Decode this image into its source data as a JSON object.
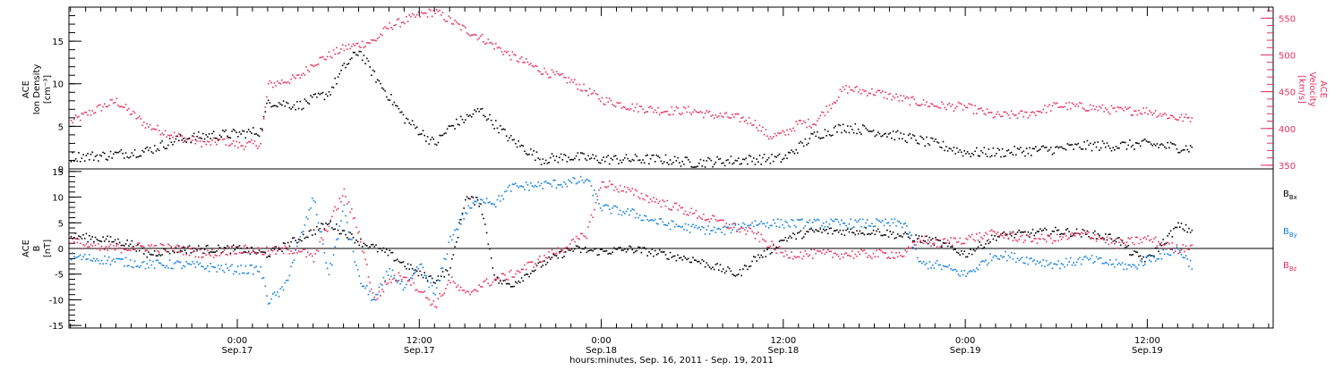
{
  "colors": {
    "black": "#000000",
    "pink": "#e8305d",
    "blue": "#1080e0"
  },
  "time_axis": {
    "xlabel": "hours:minutes, Sep. 16, 2011 - Sep. 19, 2011",
    "ticks": [
      {
        "hour": 24,
        "time": "0:00",
        "date": "Sep.17"
      },
      {
        "hour": 36,
        "time": "12:00",
        "date": "Sep.17"
      },
      {
        "hour": 48,
        "time": "0:00",
        "date": "Sep.18"
      },
      {
        "hour": 60,
        "time": "12:00",
        "date": "Sep.18"
      },
      {
        "hour": 72,
        "time": "0:00",
        "date": "Sep.19"
      },
      {
        "hour": 84,
        "time": "12:00",
        "date": "Sep.19"
      }
    ]
  },
  "chart_data": [
    {
      "type": "scatter",
      "panel": "top",
      "x_units": "hours since Sep. 16, 2011 0:00",
      "xlim": [
        12.9,
        92.3
      ],
      "left_axis": {
        "label_lines": [
          "ACE",
          "Ion Density",
          "[cm⁻³]"
        ],
        "ylim": [
          0,
          19
        ],
        "ticks": [
          0,
          5,
          10,
          15
        ]
      },
      "right_axis": {
        "label_lines": [
          "ACE",
          "Velocity",
          "[km/s]"
        ],
        "ylim": [
          345,
          565
        ],
        "ticks": [
          350,
          400,
          450,
          500,
          550
        ]
      },
      "series": [
        {
          "axis": "left",
          "color": "#000000",
          "points": [
            [
              13,
              1.5
            ],
            [
              15,
              1.6
            ],
            [
              18,
              2.2
            ],
            [
              20,
              3.5
            ],
            [
              22,
              4
            ],
            [
              24,
              4.2
            ],
            [
              25.5,
              4.5
            ],
            [
              26,
              8
            ],
            [
              28,
              7.5
            ],
            [
              30,
              9
            ],
            [
              31,
              12
            ],
            [
              32,
              14
            ],
            [
              33,
              11
            ],
            [
              35,
              6
            ],
            [
              37,
              3
            ],
            [
              38,
              5
            ],
            [
              40,
              7
            ],
            [
              42,
              3.5
            ],
            [
              44,
              1.2
            ],
            [
              46,
              1.5
            ],
            [
              48,
              1.2
            ],
            [
              50,
              1.2
            ],
            [
              52,
              1.2
            ],
            [
              54,
              0.8
            ],
            [
              56,
              1.0
            ],
            [
              58,
              1.2
            ],
            [
              60,
              1.3
            ],
            [
              62,
              4
            ],
            [
              64,
              5
            ],
            [
              66,
              4.5
            ],
            [
              68,
              3.8
            ],
            [
              70,
              3.0
            ],
            [
              72,
              2.0
            ],
            [
              74,
              2.0
            ],
            [
              76,
              2.2
            ],
            [
              78,
              2.4
            ],
            [
              80,
              2.8
            ],
            [
              82,
              2.8
            ],
            [
              84,
              3.0
            ],
            [
              86,
              2.6
            ],
            [
              87,
              2.5
            ]
          ]
        },
        {
          "axis": "right",
          "color": "#e8305d",
          "points": [
            [
              13,
              410
            ],
            [
              15,
              430
            ],
            [
              16,
              438
            ],
            [
              18,
              405
            ],
            [
              20,
              390
            ],
            [
              22,
              380
            ],
            [
              23,
              385
            ],
            [
              24,
              378
            ],
            [
              25.5,
              380
            ],
            [
              26,
              460
            ],
            [
              28,
              470
            ],
            [
              29,
              490
            ],
            [
              31,
              510
            ],
            [
              33,
              520
            ],
            [
              34,
              540
            ],
            [
              36,
              555
            ],
            [
              37,
              560
            ],
            [
              39,
              535
            ],
            [
              40,
              525
            ],
            [
              42,
              500
            ],
            [
              44,
              480
            ],
            [
              46,
              465
            ],
            [
              48,
              440
            ],
            [
              50,
              430
            ],
            [
              52,
              425
            ],
            [
              54,
              425
            ],
            [
              55,
              420
            ],
            [
              57,
              415
            ],
            [
              58,
              410
            ],
            [
              59,
              390
            ],
            [
              60,
              393
            ],
            [
              61,
              408
            ],
            [
              62,
              408
            ],
            [
              64,
              455
            ],
            [
              66,
              450
            ],
            [
              68,
              440
            ],
            [
              70,
              432
            ],
            [
              72,
              430
            ],
            [
              74,
              418
            ],
            [
              76,
              420
            ],
            [
              78,
              432
            ],
            [
              80,
              430
            ],
            [
              82,
              425
            ],
            [
              84,
              425
            ],
            [
              86,
              415
            ],
            [
              87,
              415
            ]
          ]
        }
      ]
    },
    {
      "type": "scatter",
      "panel": "bottom",
      "x_units": "hours since Sep. 16, 2011 0:00",
      "xlim": [
        12.9,
        92.3
      ],
      "left_axis": {
        "label_lines": [
          "ACE",
          "B",
          "[nT]"
        ],
        "ylim": [
          -15.5,
          15.5
        ],
        "ticks": [
          -15,
          -10,
          -5,
          0,
          5,
          10,
          15
        ]
      },
      "zero_line": true,
      "legend": [
        "Bx",
        "By",
        "Bz"
      ],
      "legend_placement": "right",
      "series": [
        {
          "name": "Bx",
          "color": "#000000",
          "points": [
            [
              13,
              2.5
            ],
            [
              15,
              2
            ],
            [
              17,
              1
            ],
            [
              18,
              -1
            ],
            [
              20,
              0
            ],
            [
              22,
              0
            ],
            [
              24,
              0
            ],
            [
              26,
              -1
            ],
            [
              28,
              2
            ],
            [
              30,
              5
            ],
            [
              32,
              1.5
            ],
            [
              34,
              -1
            ],
            [
              36,
              -5
            ],
            [
              37,
              -6
            ],
            [
              38,
              -4
            ],
            [
              39,
              10
            ],
            [
              40,
              9
            ],
            [
              41,
              -6
            ],
            [
              42,
              -7
            ],
            [
              43,
              -5
            ],
            [
              44,
              -3
            ],
            [
              46,
              0
            ],
            [
              48,
              -0.5
            ],
            [
              50,
              0
            ],
            [
              52,
              -1
            ],
            [
              54,
              -2
            ],
            [
              56,
              -4
            ],
            [
              57,
              -5
            ],
            [
              58,
              -2
            ],
            [
              59,
              -0.5
            ],
            [
              60,
              2
            ],
            [
              62,
              3.5
            ],
            [
              64,
              3.5
            ],
            [
              66,
              3.5
            ],
            [
              68,
              2.5
            ],
            [
              70,
              1.5
            ],
            [
              72,
              -1
            ],
            [
              74,
              2.5
            ],
            [
              76,
              3
            ],
            [
              78,
              3.5
            ],
            [
              80,
              3
            ],
            [
              82,
              2
            ],
            [
              83,
              -1
            ],
            [
              84,
              -2
            ],
            [
              86,
              4.5
            ],
            [
              87,
              3.5
            ]
          ]
        },
        {
          "name": "By",
          "color": "#1080e0",
          "points": [
            [
              13,
              -1.5
            ],
            [
              15,
              -2
            ],
            [
              18,
              -3
            ],
            [
              20,
              -3
            ],
            [
              22,
              -3.5
            ],
            [
              24,
              -4
            ],
            [
              25.5,
              -4
            ],
            [
              26,
              -10
            ],
            [
              27,
              -8
            ],
            [
              29,
              10
            ],
            [
              30,
              -5
            ],
            [
              31,
              8
            ],
            [
              32,
              -6
            ],
            [
              33,
              -10
            ],
            [
              34,
              -4
            ],
            [
              35,
              -8
            ],
            [
              36,
              -3
            ],
            [
              37,
              -9
            ],
            [
              38,
              2
            ],
            [
              39,
              7
            ],
            [
              40,
              10
            ],
            [
              41,
              9
            ],
            [
              42,
              12
            ],
            [
              44,
              12.5
            ],
            [
              46,
              13
            ],
            [
              47,
              13.5
            ],
            [
              48,
              8
            ],
            [
              50,
              7
            ],
            [
              52,
              5
            ],
            [
              54,
              4
            ],
            [
              56,
              3.5
            ],
            [
              57,
              4.5
            ],
            [
              58,
              5
            ],
            [
              60,
              5
            ],
            [
              62,
              5
            ],
            [
              64,
              5
            ],
            [
              66,
              5
            ],
            [
              68,
              5
            ],
            [
              69,
              -3
            ],
            [
              70,
              -3
            ],
            [
              72,
              -5
            ],
            [
              74,
              -1
            ],
            [
              76,
              -2
            ],
            [
              78,
              -3
            ],
            [
              80,
              -2
            ],
            [
              82,
              -3
            ],
            [
              83,
              -3.5
            ],
            [
              84,
              -2
            ],
            [
              86,
              0
            ],
            [
              87,
              -3.5
            ]
          ]
        },
        {
          "name": "Bz",
          "color": "#e8305d",
          "points": [
            [
              13,
              1.5
            ],
            [
              15,
              0
            ],
            [
              18,
              0.5
            ],
            [
              20,
              0
            ],
            [
              22,
              -1
            ],
            [
              24,
              0
            ],
            [
              26,
              -0.5
            ],
            [
              28,
              0
            ],
            [
              29,
              -2
            ],
            [
              30,
              5
            ],
            [
              31,
              11
            ],
            [
              32,
              3
            ],
            [
              33,
              -10
            ],
            [
              34,
              -6
            ],
            [
              35,
              -5
            ],
            [
              36,
              -8
            ],
            [
              37,
              -11
            ],
            [
              38,
              -6
            ],
            [
              39,
              -9
            ],
            [
              40,
              -7
            ],
            [
              42,
              -5
            ],
            [
              44,
              -2
            ],
            [
              46,
              1
            ],
            [
              47,
              3
            ],
            [
              48,
              13
            ],
            [
              50,
              11
            ],
            [
              52,
              9
            ],
            [
              54,
              7
            ],
            [
              56,
              5
            ],
            [
              58,
              3
            ],
            [
              60,
              -1
            ],
            [
              62,
              -1
            ],
            [
              64,
              -1
            ],
            [
              66,
              -1
            ],
            [
              68,
              -1
            ],
            [
              69,
              2
            ],
            [
              70,
              1
            ],
            [
              72,
              2
            ],
            [
              74,
              3
            ],
            [
              76,
              2
            ],
            [
              78,
              2
            ],
            [
              80,
              3
            ],
            [
              82,
              1
            ],
            [
              84,
              2
            ],
            [
              86,
              0
            ],
            [
              87,
              1
            ]
          ]
        }
      ]
    }
  ]
}
